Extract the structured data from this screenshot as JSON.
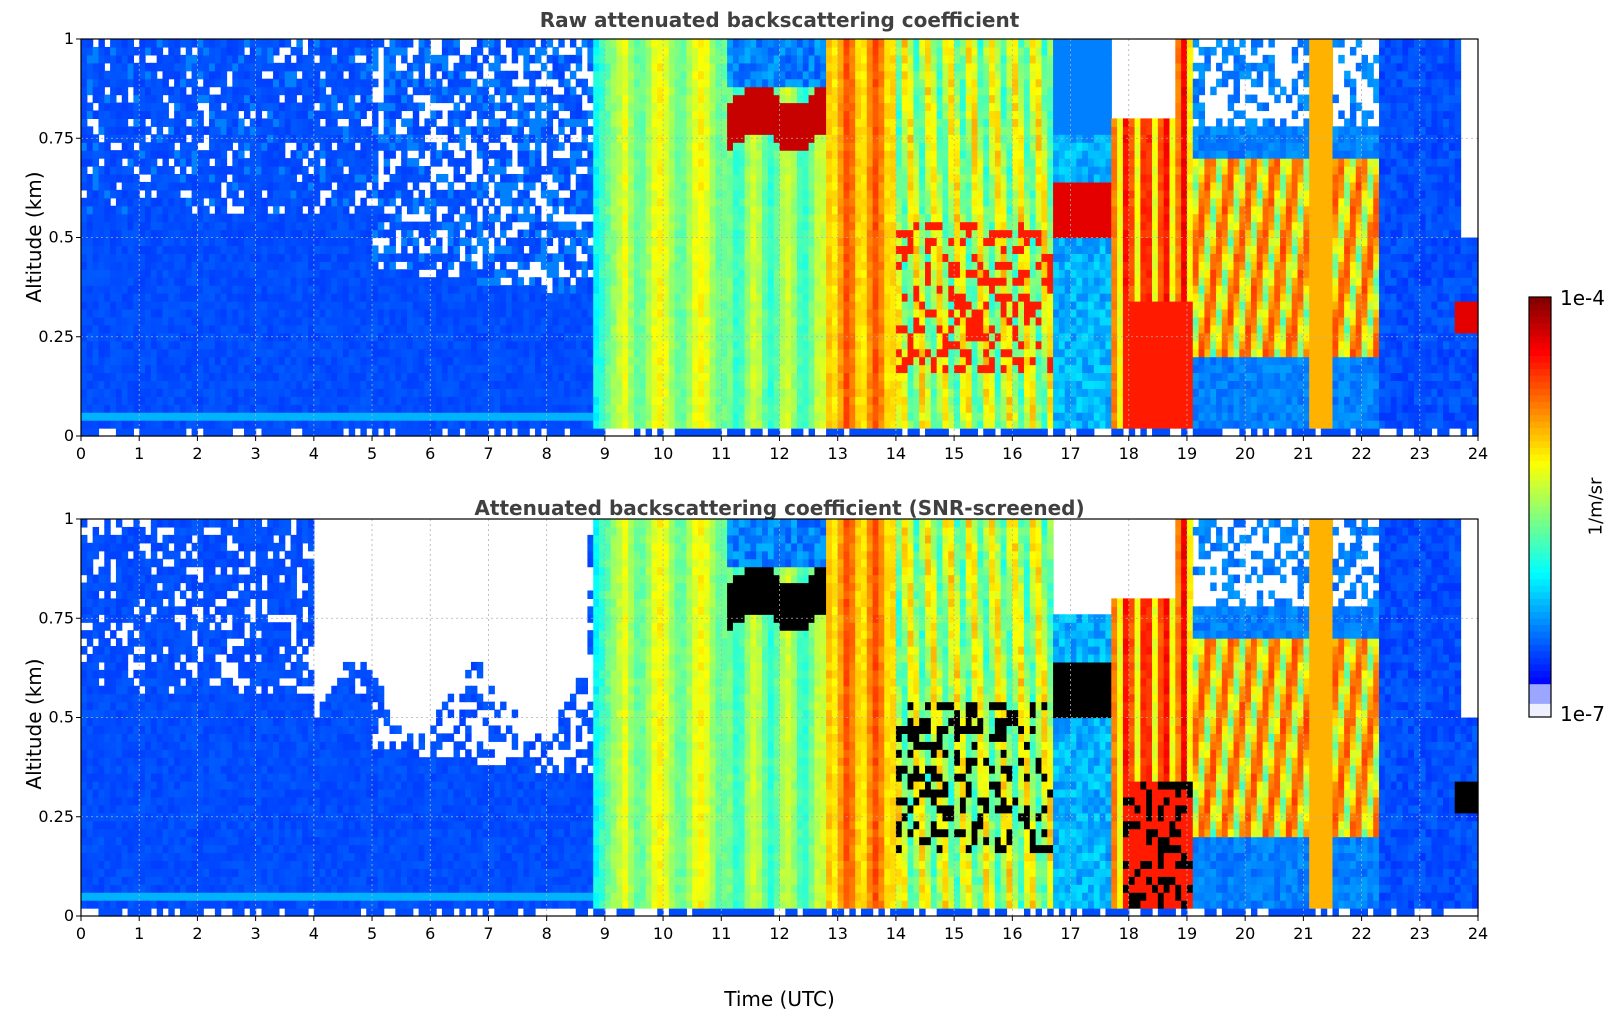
{
  "chart_data": [
    {
      "type": "heatmap",
      "title": "Raw attenuated backscattering coefficient",
      "xlabel": "",
      "ylabel": "Altitude (km)",
      "xlim": [
        0,
        24
      ],
      "ylim": [
        0,
        1
      ],
      "x_ticks": [
        "0",
        "1",
        "2",
        "3",
        "4",
        "5",
        "6",
        "7",
        "8",
        "9",
        "10",
        "11",
        "12",
        "13",
        "14",
        "15",
        "16",
        "17",
        "18",
        "19",
        "20",
        "21",
        "22",
        "23",
        "24"
      ],
      "y_ticks": [
        "0",
        "0.25",
        "0.5",
        "0.75",
        "1"
      ],
      "grid": true,
      "screened": false
    },
    {
      "type": "heatmap",
      "title": "Attenuated backscattering coefficient (SNR-screened)",
      "xlabel": "Time (UTC)",
      "ylabel": "Altitude (km)",
      "xlim": [
        0,
        24
      ],
      "ylim": [
        0,
        1
      ],
      "x_ticks": [
        "0",
        "1",
        "2",
        "3",
        "4",
        "5",
        "6",
        "7",
        "8",
        "9",
        "10",
        "11",
        "12",
        "13",
        "14",
        "15",
        "16",
        "17",
        "18",
        "19",
        "20",
        "21",
        "22",
        "23",
        "24"
      ],
      "y_ticks": [
        "0",
        "0.25",
        "0.5",
        "0.75",
        "1"
      ],
      "grid": true,
      "screened": true
    }
  ],
  "colorbar": {
    "label": "1/m/sr",
    "max_label": "1e-4",
    "min_label": "1e-7",
    "colormap": "jet"
  }
}
